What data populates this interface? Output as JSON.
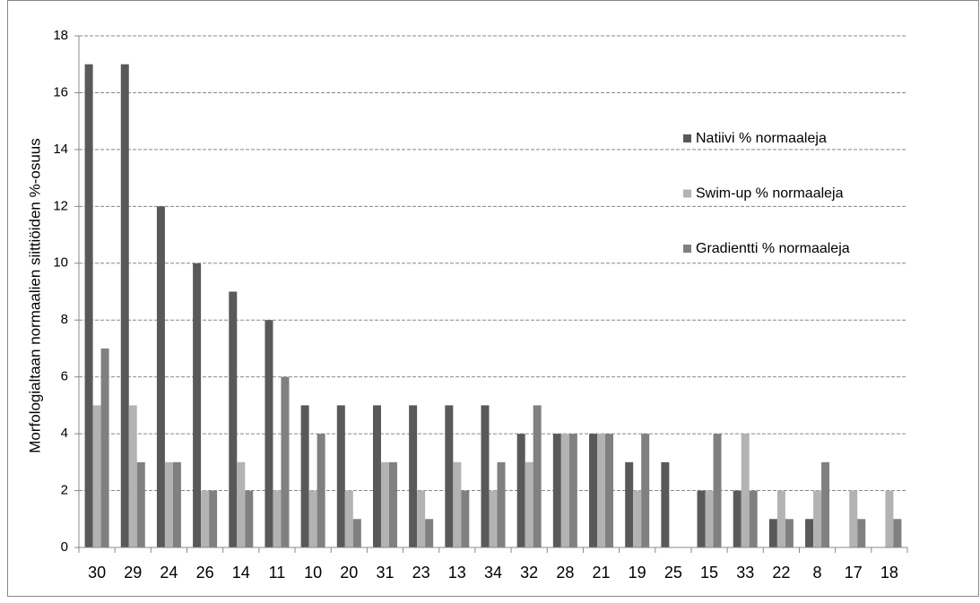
{
  "chart_data": {
    "type": "bar",
    "y_label": "Morfologialtaan normaalien siittiöiden %-osuus",
    "categories": [
      "30",
      "29",
      "24",
      "26",
      "14",
      "11",
      "10",
      "20",
      "31",
      "23",
      "13",
      "34",
      "32",
      "28",
      "21",
      "19",
      "25",
      "15",
      "33",
      "22",
      "8",
      "17",
      "18"
    ],
    "series": [
      {
        "name": "Natiivi % normaaleja",
        "color": "#595959",
        "values": [
          17,
          17,
          12,
          10,
          9,
          8,
          5,
          5,
          5,
          5,
          5,
          5,
          4,
          4,
          4,
          3,
          3,
          2,
          2,
          1,
          1,
          0,
          0
        ]
      },
      {
        "name": "Swim-up % normaaleja",
        "color": "#b3b3b3",
        "values": [
          5,
          5,
          3,
          2,
          3,
          2,
          2,
          2,
          3,
          2,
          3,
          2,
          3,
          4,
          4,
          2,
          0,
          2,
          4,
          2,
          2,
          2,
          2
        ]
      },
      {
        "name": "Gradientti % normaaleja",
        "color": "#808080",
        "values": [
          7,
          3,
          3,
          2,
          2,
          6,
          4,
          1,
          3,
          1,
          2,
          3,
          5,
          4,
          4,
          4,
          0,
          4,
          2,
          1,
          3,
          1,
          1
        ]
      }
    ],
    "ylim": [
      0,
      18
    ],
    "yticks": [
      0,
      2,
      4,
      6,
      8,
      10,
      12,
      14,
      16,
      18
    ],
    "grid": true,
    "legend": "right"
  }
}
